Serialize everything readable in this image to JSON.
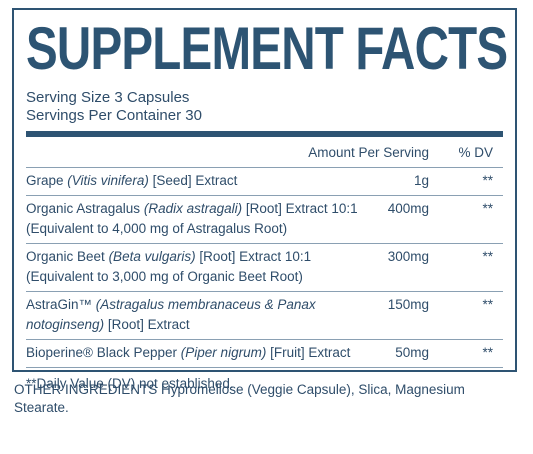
{
  "title": "SUPPLEMENT FACTS",
  "serving": {
    "size": "Serving Size 3 Capsules",
    "per_container": "Servings Per Container 30"
  },
  "table": {
    "header": {
      "amount": "Amount Per Serving",
      "dv": "% DV"
    },
    "rows": [
      {
        "name": [
          {
            "text": "Grape",
            "italic": false
          },
          {
            "text": "(Vitis vinifera)",
            "italic": true
          },
          {
            "text": "[Seed] Extract",
            "italic": false
          }
        ],
        "amount": "1g",
        "dv": "**"
      },
      {
        "name": [
          {
            "text": "Organic Astragalus",
            "italic": false
          },
          {
            "text": "(Radix astragali)",
            "italic": true
          },
          {
            "text": "[Root] Extract 10:1",
            "italic": false
          }
        ],
        "note": "(Equivalent to 4,000 mg of Astragalus Root)",
        "amount": "400mg",
        "dv": "**"
      },
      {
        "name": [
          {
            "text": "Organic Beet",
            "italic": false
          },
          {
            "text": "(Beta vulgaris)",
            "italic": true
          },
          {
            "text": "[Root] Extract 10:1",
            "italic": false
          }
        ],
        "note": "(Equivalent to 3,000 mg of Organic Beet Root)",
        "amount": "300mg",
        "dv": "**"
      },
      {
        "name": [
          {
            "text": "AstraGin™",
            "italic": false
          },
          {
            "text": "(Astragalus membranaceus & Panax notoginseng)",
            "italic": true
          },
          {
            "text": "[Root] Extract",
            "italic": false
          }
        ],
        "amount": "150mg",
        "dv": "**"
      },
      {
        "name": [
          {
            "text": "Bioperine® Black Pepper",
            "italic": false
          },
          {
            "text": "(Piper nigrum)",
            "italic": true
          },
          {
            "text": "[Fruit] Extract",
            "italic": false
          }
        ],
        "amount": "50mg",
        "dv": "**"
      }
    ]
  },
  "footnote": "**Daily Value (DV) not established.",
  "other_ingredients": "OTHER INGREDIENTS Hypromellose (Veggie Capsule), Slica, Magnesium Stearate."
}
